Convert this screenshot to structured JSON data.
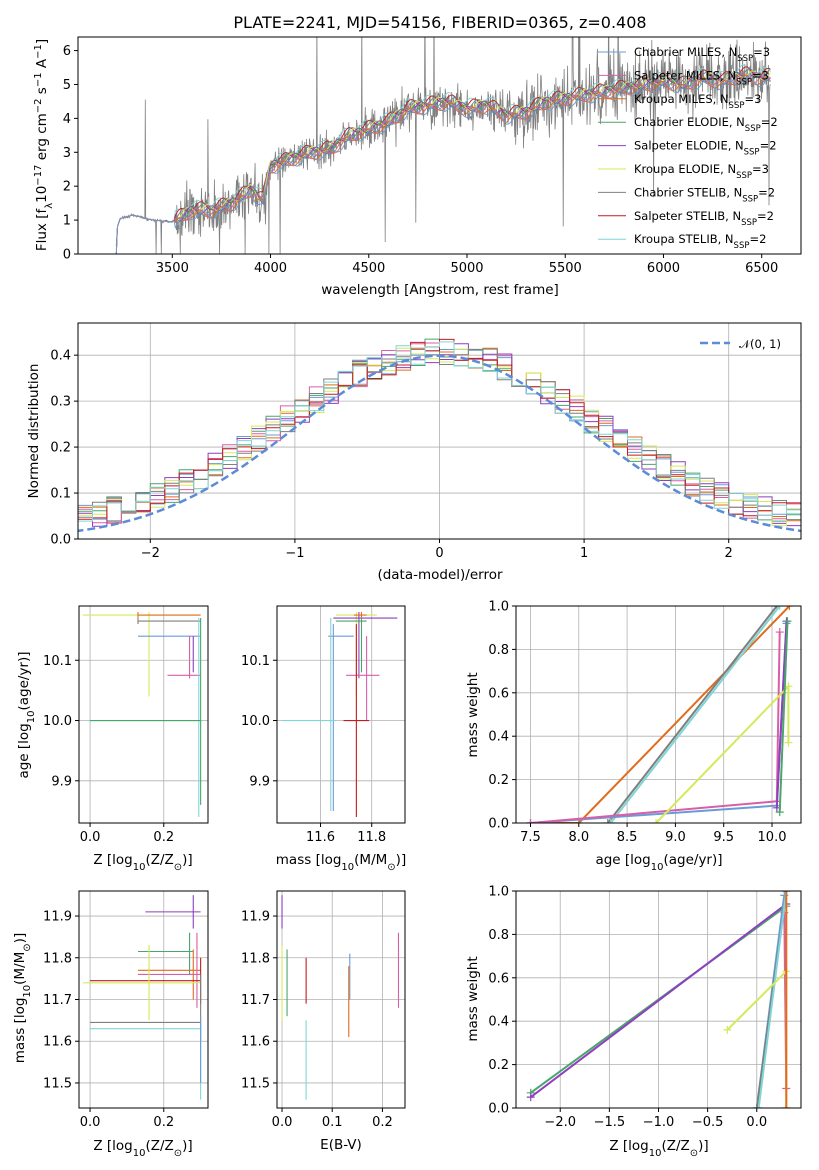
{
  "palette": [
    "#6a9bd8",
    "#e06c1c",
    "#d85fa7",
    "#4aa56a",
    "#8f3fbf",
    "#d4ea5a",
    "#7f7f7f",
    "#c41c1c",
    "#7fd6d6"
  ],
  "chart_data": [
    {
      "id": "spectrum",
      "type": "line",
      "title": "PLATE=2241, MJD=54156, FIBERID=0365, z=0.408",
      "xlabel": "wavelength [Angstrom, rest frame]",
      "ylabel_main": "Flux [f",
      "ylabel_tail": "10",
      "ylabel_exp1": "−17",
      "ylabel_mid": " erg cm",
      "ylabel_exp2": "−2",
      "ylabel_mid2": " s",
      "ylabel_exp3": "−1",
      "ylabel_end": " A",
      "ylabel_exp4": "−1",
      "ylabel_end2": "]",
      "xlim": [
        3020,
        6700
      ],
      "ylim": [
        0,
        6.4
      ],
      "xticks": [
        3500,
        4000,
        4500,
        5000,
        5500,
        6000,
        6500
      ],
      "yticks": [
        0,
        1,
        2,
        3,
        4,
        5,
        6
      ],
      "legend_loc": "upper right",
      "legend": [
        {
          "name": "Chabrier MILES, N",
          "sub": "SSP",
          "suffix": "=3"
        },
        {
          "name": "Salpeter MILES, N",
          "sub": "SSP",
          "suffix": "=3"
        },
        {
          "name": "Kroupa MILES, N",
          "sub": "SSP",
          "suffix": "=3"
        },
        {
          "name": "Chabrier ELODIE, N",
          "sub": "SSP",
          "suffix": "=2"
        },
        {
          "name": "Salpeter ELODIE, N",
          "sub": "SSP",
          "suffix": "=2"
        },
        {
          "name": "Kroupa ELODIE, N",
          "sub": "SSP",
          "suffix": "=3"
        },
        {
          "name": "Chabrier STELIB, N",
          "sub": "SSP",
          "suffix": "=2"
        },
        {
          "name": "Salpeter STELIB, N",
          "sub": "SSP",
          "suffix": "=2"
        },
        {
          "name": "Kroupa STELIB, N",
          "sub": "SSP",
          "suffix": "=2"
        }
      ],
      "continuum": [
        [
          3215,
          0
        ],
        [
          3220,
          0.8
        ],
        [
          3235,
          1.05
        ],
        [
          3300,
          1.15
        ],
        [
          3400,
          1.0
        ],
        [
          3500,
          0.95
        ],
        [
          3600,
          1.3
        ],
        [
          3700,
          1.3
        ],
        [
          3800,
          1.5
        ],
        [
          3900,
          1.9
        ],
        [
          3960,
          1.6
        ],
        [
          4000,
          2.6
        ],
        [
          4100,
          2.8
        ],
        [
          4200,
          3.0
        ],
        [
          4300,
          3.1
        ],
        [
          4400,
          3.5
        ],
        [
          4500,
          3.7
        ],
        [
          4600,
          3.9
        ],
        [
          4700,
          4.3
        ],
        [
          4800,
          4.4
        ],
        [
          4900,
          4.5
        ],
        [
          5000,
          4.3
        ],
        [
          5100,
          4.4
        ],
        [
          5200,
          4.1
        ],
        [
          5300,
          4.2
        ],
        [
          5400,
          4.5
        ],
        [
          5500,
          4.6
        ],
        [
          5600,
          4.7
        ],
        [
          5700,
          4.8
        ],
        [
          5800,
          4.9
        ],
        [
          5900,
          5.0
        ],
        [
          6000,
          5.1
        ],
        [
          6100,
          5.0
        ],
        [
          6200,
          5.2
        ],
        [
          6300,
          5.1
        ],
        [
          6400,
          5.3
        ],
        [
          6500,
          5.2
        ],
        [
          6540,
          5.25
        ]
      ]
    },
    {
      "id": "residual_hist",
      "type": "line",
      "xlabel": "(data-model)/error",
      "ylabel": "Normed distribution",
      "xlim": [
        -2.5,
        2.5
      ],
      "ylim": [
        0,
        0.47
      ],
      "xticks": [
        -2,
        -1,
        0,
        1,
        2
      ],
      "yticks": [
        0.0,
        0.1,
        0.2,
        0.3,
        0.4
      ],
      "legend": "𝒩(0, 1)",
      "legend_loc": "upper right"
    },
    {
      "id": "age_vs_Z",
      "type": "scatter",
      "xlabel": "Z [log",
      "xlabel_sub": "10",
      "xlabel_rest": "(Z/Z",
      "xlabel_sun": "⊙",
      "xlabel_end": ")]",
      "ylabel": "age  [log",
      "ylabel_sub": "10",
      "ylabel_rest": "(age/yr)]",
      "xlim": [
        -0.03,
        0.32
      ],
      "ylim": [
        9.83,
        10.19
      ],
      "xticks": [
        0.0,
        0.2
      ],
      "yticks": [
        9.9,
        10.0,
        10.1
      ],
      "points": [
        {
          "x": 0.16,
          "y": 10.175,
          "xlo": -0.02,
          "xhi": 0.3,
          "ylo": 10.04,
          "yhi": 10.18,
          "c": 5
        },
        {
          "x": 0.13,
          "y": 10.175,
          "xlo": 0.13,
          "xhi": 0.3,
          "ylo": 10.17,
          "yhi": 10.18,
          "c": 1
        },
        {
          "x": 0.13,
          "y": 10.165,
          "xlo": 0.13,
          "xhi": 0.3,
          "ylo": 10.16,
          "yhi": 10.17,
          "c": 6
        },
        {
          "x": 0.13,
          "y": 10.14,
          "xlo": 0.13,
          "xhi": 0.3,
          "ylo": 10.14,
          "yhi": 10.14,
          "c": 0
        },
        {
          "x": 0.27,
          "y": 10.075,
          "xlo": 0.21,
          "xhi": 0.3,
          "ylo": 10.07,
          "yhi": 10.14,
          "c": 2
        },
        {
          "x": 0.28,
          "y": 10.14,
          "xlo": 0.28,
          "xhi": 0.28,
          "ylo": 10.08,
          "yhi": 10.14,
          "c": 4
        },
        {
          "x": 0.295,
          "y": 10.0,
          "xlo": -0.005,
          "xhi": 0.305,
          "ylo": 9.84,
          "yhi": 10.17,
          "c": 8
        },
        {
          "x": 0.3,
          "y": 10.0,
          "xlo": 0.0,
          "xhi": 0.3,
          "ylo": 9.86,
          "yhi": 10.17,
          "c": 3
        }
      ]
    },
    {
      "id": "age_vs_mass",
      "type": "scatter",
      "xlabel": "mass [log",
      "xlabel_sub": "10",
      "xlabel_rest": "(M/M",
      "xlabel_sun": "⊙",
      "xlabel_end": ")]",
      "xlim": [
        11.43,
        11.93
      ],
      "ylim": [
        9.83,
        10.19
      ],
      "xticks": [
        11.6,
        11.8
      ],
      "yticks": [
        9.9,
        10.0,
        10.1
      ],
      "points": [
        {
          "x": 11.74,
          "y": 10.175,
          "xlo": 11.66,
          "xhi": 11.82,
          "ylo": 10.04,
          "yhi": 10.18,
          "c": 5
        },
        {
          "x": 11.75,
          "y": 10.17,
          "xlo": 11.65,
          "xhi": 11.9,
          "ylo": 10.07,
          "yhi": 10.18,
          "c": 4
        },
        {
          "x": 11.76,
          "y": 10.165,
          "xlo": 11.66,
          "xhi": 11.78,
          "ylo": 10.08,
          "yhi": 10.17,
          "c": 3
        },
        {
          "x": 11.65,
          "y": 10.14,
          "xlo": 11.63,
          "xhi": 11.73,
          "ylo": 9.85,
          "yhi": 10.16,
          "c": 0
        },
        {
          "x": 11.78,
          "y": 10.075,
          "xlo": 11.7,
          "xhi": 11.83,
          "ylo": 10.0,
          "yhi": 10.14,
          "c": 2
        },
        {
          "x": 11.74,
          "y": 10.0,
          "xlo": 11.69,
          "xhi": 11.79,
          "ylo": 9.84,
          "yhi": 10.16,
          "c": 7
        },
        {
          "x": 11.64,
          "y": 10.0,
          "xlo": 11.45,
          "xhi": 11.66,
          "ylo": 9.85,
          "yhi": 10.17,
          "c": 8
        },
        {
          "x": 11.76,
          "y": 10.175,
          "xlo": 11.73,
          "xhi": 11.78,
          "ylo": 10.17,
          "yhi": 10.18,
          "c": 1
        }
      ]
    },
    {
      "id": "weight_vs_age",
      "type": "line",
      "xlabel": "age  [log",
      "xlabel_sub": "10",
      "xlabel_rest": "(age/yr)]",
      "ylabel": "mass weight",
      "xlim": [
        7.35,
        10.3
      ],
      "ylim": [
        0,
        1
      ],
      "xticks": [
        7.5,
        8.0,
        8.5,
        9.0,
        9.5,
        10.0
      ],
      "yticks": [
        0.0,
        0.2,
        0.4,
        0.6,
        0.8,
        1.0
      ],
      "series": [
        {
          "c": 1,
          "pts": [
            [
              7.5,
              0.0
            ],
            [
              8.0,
              0.0
            ],
            [
              10.18,
              1.0
            ]
          ]
        },
        {
          "c": 6,
          "pts": [
            [
              8.3,
              0.0
            ],
            [
              10.05,
              1.0
            ]
          ]
        },
        {
          "c": 8,
          "pts": [
            [
              8.33,
              0.0
            ],
            [
              10.08,
              1.0
            ]
          ]
        },
        {
          "c": 0,
          "pts": [
            [
              7.5,
              0.0
            ],
            [
              10.05,
              0.08
            ],
            [
              10.15,
              0.92
            ]
          ]
        },
        {
          "c": 2,
          "pts": [
            [
              7.5,
              0.0
            ],
            [
              10.05,
              0.1
            ],
            [
              10.08,
              0.88
            ]
          ]
        },
        {
          "c": 4,
          "pts": [
            [
              10.05,
              0.07
            ],
            [
              10.15,
              0.93
            ]
          ]
        },
        {
          "c": 5,
          "pts": [
            [
              8.8,
              0.0
            ],
            [
              10.17,
              0.63
            ],
            [
              10.17,
              0.37
            ]
          ]
        },
        {
          "c": 3,
          "pts": [
            [
              10.08,
              0.05
            ],
            [
              10.16,
              0.93
            ]
          ]
        }
      ]
    },
    {
      "id": "mass_vs_Z",
      "type": "scatter",
      "xlabel": "Z [log",
      "xlabel_sub": "10",
      "xlabel_rest": "(Z/Z",
      "xlabel_sun": "⊙",
      "xlabel_end": ")]",
      "ylabel": "mass [log",
      "ylabel_sub": "10",
      "ylabel_rest": "(M/M",
      "ylabel_sun": "⊙",
      "ylabel_end": ")]",
      "xlim": [
        -0.03,
        0.32
      ],
      "ylim": [
        11.44,
        11.96
      ],
      "xticks": [
        0.0,
        0.2
      ],
      "yticks": [
        11.5,
        11.6,
        11.7,
        11.8,
        11.9
      ],
      "points": [
        {
          "x": 0.28,
          "y": 11.91,
          "xlo": 0.15,
          "xhi": 0.3,
          "ylo": 11.87,
          "yhi": 11.95,
          "c": 4
        },
        {
          "x": 0.16,
          "y": 11.78,
          "xlo": 0.16,
          "xhi": 0.16,
          "ylo": 11.65,
          "yhi": 11.83,
          "c": 5
        },
        {
          "x": 0.27,
          "y": 11.815,
          "xlo": 0.13,
          "xhi": 0.28,
          "ylo": 11.76,
          "yhi": 11.86,
          "c": 3
        },
        {
          "x": 0.28,
          "y": 11.77,
          "xlo": 0.13,
          "xhi": 0.3,
          "ylo": 11.7,
          "yhi": 11.82,
          "c": 1
        },
        {
          "x": 0.29,
          "y": 11.76,
          "xlo": 0.13,
          "xhi": 0.3,
          "ylo": 11.68,
          "yhi": 11.86,
          "c": 2
        },
        {
          "x": 0.3,
          "y": 11.745,
          "xlo": 0.0,
          "xhi": 0.3,
          "ylo": 11.69,
          "yhi": 11.8,
          "c": 7
        },
        {
          "x": 0.16,
          "y": 11.74,
          "xlo": -0.02,
          "xhi": 0.3,
          "ylo": 11.66,
          "yhi": 11.83,
          "c": 5
        },
        {
          "x": 0.3,
          "y": 11.645,
          "xlo": 0.0,
          "xhi": 0.3,
          "ylo": 11.6,
          "yhi": 11.76,
          "c": 6
        },
        {
          "x": 0.3,
          "y": 11.63,
          "xlo": 0.0,
          "xhi": 0.3,
          "ylo": 11.46,
          "yhi": 11.64,
          "c": 8
        },
        {
          "x": 0.3,
          "y": 11.65,
          "xlo": 0.3,
          "xhi": 0.3,
          "ylo": 11.5,
          "yhi": 11.66,
          "c": 0
        }
      ]
    },
    {
      "id": "mass_vs_ebv",
      "type": "scatter",
      "xlabel": "E(B-V)",
      "xlim": [
        -0.01,
        0.245
      ],
      "ylim": [
        11.44,
        11.96
      ],
      "xticks": [
        0.0,
        0.1,
        0.2
      ],
      "yticks": [
        11.5,
        11.6,
        11.7,
        11.8,
        11.9
      ],
      "points": [
        {
          "x": 0.0,
          "y": 11.91,
          "ylo": 11.87,
          "yhi": 11.95,
          "c": 4
        },
        {
          "x": 0.0,
          "y": 11.74,
          "ylo": 11.65,
          "yhi": 11.83,
          "c": 5
        },
        {
          "x": 0.01,
          "y": 11.72,
          "ylo": 11.66,
          "yhi": 11.82,
          "c": 3
        },
        {
          "x": 0.048,
          "y": 11.64,
          "ylo": 11.46,
          "yhi": 11.65,
          "c": 8
        },
        {
          "x": 0.048,
          "y": 11.745,
          "ylo": 11.69,
          "yhi": 11.8,
          "c": 7
        },
        {
          "x": 0.135,
          "y": 11.77,
          "ylo": 11.7,
          "yhi": 11.81,
          "c": 0
        },
        {
          "x": 0.133,
          "y": 11.7,
          "ylo": 11.61,
          "yhi": 11.78,
          "c": 1
        },
        {
          "x": 0.232,
          "y": 11.76,
          "ylo": 11.68,
          "yhi": 11.86,
          "c": 2
        }
      ]
    },
    {
      "id": "weight_vs_Z",
      "type": "line",
      "xlabel": "Z [log",
      "xlabel_sub": "10",
      "xlabel_rest": "(Z/Z",
      "xlabel_sun": "⊙",
      "xlabel_end": ")]",
      "ylabel": "mass weight",
      "xlim": [
        -2.45,
        0.45
      ],
      "ylim": [
        0,
        1
      ],
      "xticks": [
        -2.0,
        -1.5,
        -1.0,
        -0.5,
        0.0
      ],
      "yticks": [
        0.0,
        0.2,
        0.4,
        0.6,
        0.8,
        1.0
      ],
      "series": [
        {
          "c": 3,
          "pts": [
            [
              -2.3,
              0.07
            ],
            [
              0.3,
              0.93
            ]
          ]
        },
        {
          "c": 4,
          "pts": [
            [
              -2.3,
              0.05
            ],
            [
              0.3,
              0.94
            ]
          ]
        },
        {
          "c": 2,
          "pts": [
            [
              0.28,
              0.9
            ],
            [
              0.3,
              0.09
            ]
          ]
        },
        {
          "c": 0,
          "pts": [
            [
              0.0,
              0.0
            ],
            [
              0.28,
              0.98
            ]
          ]
        },
        {
          "c": 6,
          "pts": [
            [
              0.0,
              0.0
            ],
            [
              0.3,
              1.0
            ]
          ]
        },
        {
          "c": 8,
          "pts": [
            [
              0.02,
              0.0
            ],
            [
              0.3,
              1.0
            ]
          ]
        },
        {
          "c": 5,
          "pts": [
            [
              -0.3,
              0.36
            ],
            [
              0.3,
              0.63
            ],
            [
              0.3,
              0.0
            ]
          ]
        },
        {
          "c": 1,
          "pts": [
            [
              0.3,
              0.0
            ],
            [
              0.3,
              1.0
            ]
          ]
        }
      ]
    }
  ]
}
